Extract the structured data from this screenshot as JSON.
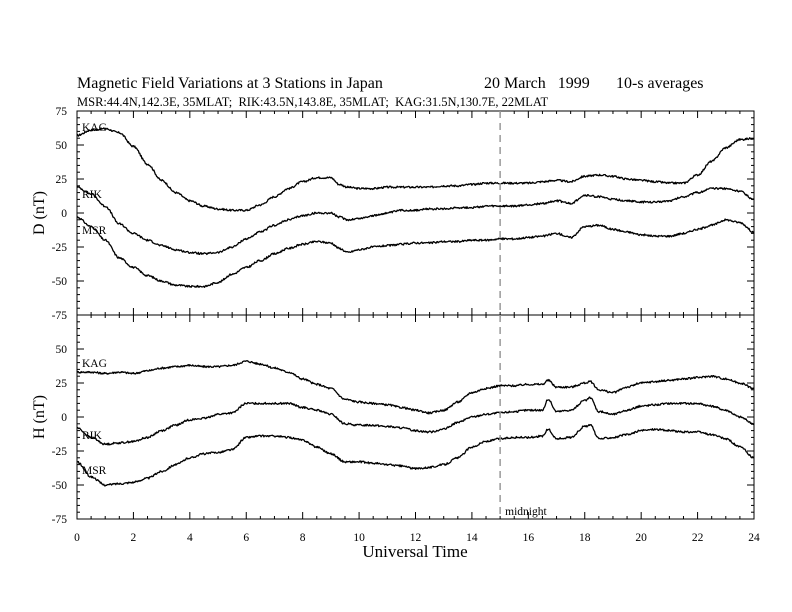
{
  "chart_data": {
    "type": "line",
    "title": "Magnetic Field Variations at 3 Stations in Japan",
    "date": "20 March   1999",
    "averaging": "10-s averages",
    "subtitle": "MSR:44.4N,142.3E, 35MLAT;  RIK:43.5N,143.8E, 35MLAT;  KAG:31.5N,130.7E, 22MLAT",
    "xlabel": "Universal Time",
    "xlim": [
      0,
      24
    ],
    "xticks": [
      "0",
      "2",
      "4",
      "6",
      "8",
      "10",
      "12",
      "14",
      "16",
      "18",
      "20",
      "22",
      "24"
    ],
    "midnight": {
      "x": 15,
      "label": "midnight"
    },
    "panels": [
      {
        "ylabel": "D (nT)",
        "ylim": [
          -75,
          75
        ],
        "yticks": [
          "75",
          "50",
          "25",
          "0",
          "-25",
          "-50",
          "-75"
        ],
        "series": [
          {
            "name": "KAG",
            "x": [
              0,
              0.5,
              1,
              1.5,
              2,
              2.5,
              3,
              3.5,
              4,
              4.5,
              5,
              5.5,
              6,
              6.5,
              7,
              7.5,
              8,
              8.5,
              9,
              9.3,
              9.6,
              10,
              10.5,
              11,
              11.5,
              12,
              12.5,
              13,
              13.5,
              14,
              14.5,
              15,
              15.5,
              16,
              16.5,
              17,
              17.5,
              18,
              18.5,
              19,
              19.5,
              20,
              20.5,
              21,
              21.5,
              22,
              22.5,
              23,
              23.5,
              24
            ],
            "y": [
              57,
              61,
              62,
              59,
              49,
              36,
              24,
              15,
              9,
              5,
              3,
              2,
              2,
              6,
              12,
              18,
              23,
              26,
              26,
              21,
              19,
              18,
              18,
              19,
              19,
              19,
              19,
              20,
              20,
              21,
              22,
              22,
              22,
              22,
              23,
              24,
              23,
              27,
              28,
              27,
              25,
              24,
              23,
              22,
              22,
              28,
              38,
              48,
              54,
              55
            ]
          },
          {
            "name": "RIK",
            "x": [
              0,
              0.5,
              1,
              1.5,
              2,
              2.5,
              3,
              3.5,
              4,
              4.5,
              5,
              5.5,
              6,
              6.5,
              7,
              7.5,
              8,
              8.5,
              9,
              9.3,
              9.6,
              10,
              10.5,
              11,
              11.5,
              12,
              12.5,
              13,
              13.5,
              14,
              14.5,
              15,
              15.5,
              16,
              16.5,
              17,
              17.5,
              18,
              18.5,
              19,
              19.5,
              20,
              20.5,
              21,
              21.5,
              22,
              22.5,
              23,
              23.5,
              24
            ],
            "y": [
              19,
              14,
              5,
              -8,
              -15,
              -20,
              -24,
              -27,
              -29,
              -30,
              -29,
              -25,
              -19,
              -14,
              -9,
              -5,
              -2,
              0,
              0,
              -3,
              -5,
              -4,
              -2,
              0,
              2,
              2,
              3,
              3,
              4,
              4,
              5,
              5,
              5,
              6,
              7,
              9,
              7,
              13,
              12,
              10,
              9,
              8,
              8,
              9,
              12,
              15,
              18,
              18,
              16,
              10
            ]
          },
          {
            "name": "MSR",
            "x": [
              0,
              0.5,
              1,
              1.5,
              2,
              2.5,
              3,
              3.5,
              4,
              4.5,
              5,
              5.5,
              6,
              6.5,
              7,
              7.5,
              8,
              8.5,
              9,
              9.3,
              9.6,
              10,
              10.5,
              11,
              11.5,
              12,
              12.5,
              13,
              13.5,
              14,
              14.5,
              15,
              15.5,
              16,
              16.5,
              17,
              17.5,
              18,
              18.5,
              19,
              19.5,
              20,
              20.5,
              21,
              21.5,
              22,
              22.5,
              23,
              23.5,
              24
            ],
            "y": [
              -3,
              -10,
              -20,
              -33,
              -40,
              -46,
              -50,
              -53,
              -54,
              -54,
              -51,
              -45,
              -40,
              -35,
              -30,
              -26,
              -23,
              -21,
              -22,
              -26,
              -29,
              -27,
              -25,
              -24,
              -23,
              -22,
              -22,
              -21,
              -21,
              -20,
              -20,
              -19,
              -19,
              -18,
              -17,
              -15,
              -18,
              -10,
              -9,
              -12,
              -14,
              -16,
              -17,
              -17,
              -15,
              -12,
              -9,
              -5,
              -7,
              -14
            ]
          }
        ]
      },
      {
        "ylabel": "H (nT)",
        "ylim": [
          -75,
          75
        ],
        "yticks": [
          "50",
          "25",
          "0",
          "-25",
          "-50",
          "-75"
        ],
        "series": [
          {
            "name": "KAG",
            "x": [
              0,
              0.5,
              1,
              1.5,
              2,
              2.5,
              3,
              3.5,
              4,
              4.5,
              5,
              5.5,
              6,
              6.5,
              7,
              7.5,
              8,
              8.5,
              9,
              9.5,
              10,
              10.5,
              11,
              11.5,
              12,
              12.5,
              13,
              13.5,
              14,
              14.5,
              15,
              15.5,
              16,
              16.5,
              16.7,
              17,
              17.5,
              18,
              18.2,
              18.5,
              19,
              19.5,
              20,
              20.5,
              21,
              21.5,
              22,
              22.5,
              23,
              23.5,
              24
            ],
            "y": [
              33,
              33,
              32,
              33,
              32,
              34,
              36,
              37,
              38,
              37,
              37,
              38,
              41,
              39,
              36,
              33,
              28,
              24,
              21,
              13,
              11,
              10,
              9,
              7,
              5,
              3,
              5,
              11,
              18,
              21,
              23,
              23,
              24,
              24,
              27,
              22,
              22,
              25,
              26,
              20,
              18,
              22,
              25,
              26,
              27,
              28,
              29,
              30,
              28,
              25,
              21
            ]
          },
          {
            "name": "RIK",
            "x": [
              0,
              0.5,
              1,
              1.5,
              2,
              2.5,
              3,
              3.5,
              4,
              4.5,
              5,
              5.5,
              6,
              6.5,
              7,
              7.5,
              8,
              8.5,
              9,
              9.5,
              10,
              10.5,
              11,
              11.5,
              12,
              12.5,
              13,
              13.5,
              14,
              14.5,
              15,
              15.5,
              16,
              16.5,
              16.7,
              17,
              17.5,
              18,
              18.2,
              18.5,
              19,
              19.5,
              20,
              20.5,
              21,
              21.5,
              22,
              22.5,
              23,
              23.5,
              24
            ],
            "y": [
              -8,
              -15,
              -20,
              -19,
              -18,
              -15,
              -10,
              -6,
              -2,
              -1,
              2,
              3,
              10,
              10,
              10,
              10,
              7,
              5,
              2,
              -5,
              -6,
              -6,
              -7,
              -8,
              -10,
              -11,
              -9,
              -4,
              0,
              2,
              3,
              4,
              5,
              5,
              13,
              4,
              5,
              12,
              14,
              4,
              2,
              5,
              8,
              9,
              10,
              10,
              10,
              8,
              5,
              0,
              -5
            ]
          },
          {
            "name": "MSR",
            "x": [
              0,
              0.5,
              1,
              1.5,
              2,
              2.5,
              3,
              3.5,
              4,
              4.5,
              5,
              5.5,
              6,
              6.5,
              7,
              7.5,
              8,
              8.5,
              9,
              9.5,
              10,
              10.5,
              11,
              11.5,
              12,
              12.5,
              13,
              13.5,
              14,
              14.5,
              15,
              15.5,
              16,
              16.5,
              16.7,
              17,
              17.5,
              18,
              18.2,
              18.5,
              19,
              19.5,
              20,
              20.5,
              21,
              21.5,
              22,
              22.5,
              23,
              23.5,
              24
            ],
            "y": [
              -33,
              -44,
              -50,
              -49,
              -48,
              -45,
              -40,
              -35,
              -30,
              -27,
              -26,
              -24,
              -15,
              -14,
              -14,
              -15,
              -17,
              -22,
              -27,
              -33,
              -33,
              -34,
              -35,
              -36,
              -38,
              -37,
              -35,
              -30,
              -22,
              -18,
              -16,
              -15,
              -15,
              -14,
              -9,
              -16,
              -15,
              -7,
              -6,
              -16,
              -15,
              -13,
              -10,
              -9,
              -10,
              -11,
              -11,
              -13,
              -16,
              -22,
              -30
            ]
          }
        ]
      }
    ]
  }
}
